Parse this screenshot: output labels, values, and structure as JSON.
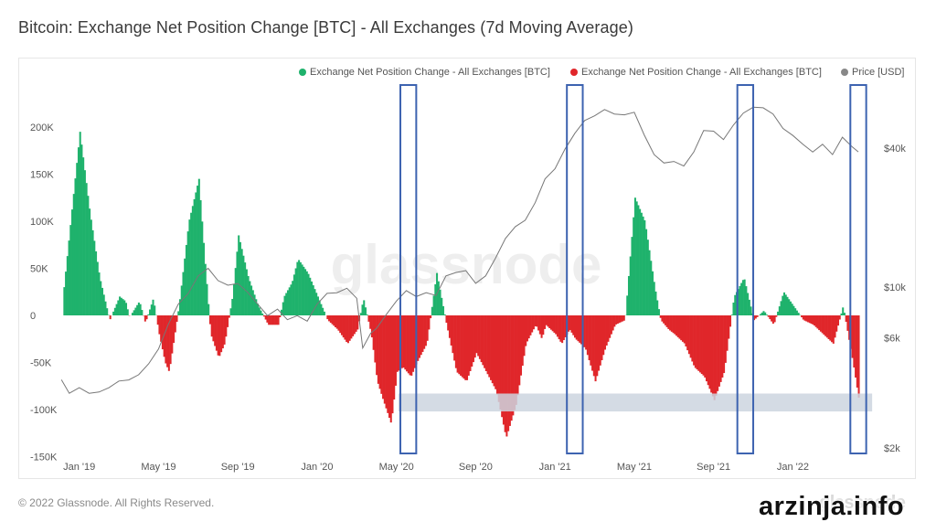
{
  "title": "Bitcoin: Exchange Net Position Change [BTC] - All Exchanges (7d Moving Average)",
  "footer": {
    "copyright": "© 2022 Glassnode. All Rights Reserved.",
    "brand": "glassnode",
    "site_stamp": "arzinja.info"
  },
  "watermark": "glassnode",
  "colors": {
    "positive": "#1fb26c",
    "negative": "#e0262a",
    "price": "#777777",
    "box": "#3d63b0",
    "band": "#cdd5df",
    "axis_text": "#555555"
  },
  "chart_data": {
    "type": "bar",
    "title": "Bitcoin: Exchange Net Position Change [BTC] - All Exchanges (7d Moving Average)",
    "legend_placement": "top-right",
    "legend": [
      {
        "label": "Exchange Net Position Change - All Exchanges [BTC]",
        "color": "#1fb26c"
      },
      {
        "label": "Exchange Net Position Change - All Exchanges [BTC]",
        "color": "#e0262a"
      },
      {
        "label": "Price [USD]",
        "color": "#888888"
      }
    ],
    "x_ticks": [
      "Jan '19",
      "May '19",
      "Sep '19",
      "Jan '20",
      "May '20",
      "Sep '20",
      "Jan '21",
      "May '21",
      "Sep '21",
      "Jan '22"
    ],
    "x_tick_months": [
      0,
      4,
      8,
      12,
      16,
      20,
      24,
      28,
      32,
      36
    ],
    "x_range_months": [
      -1.0,
      40.5
    ],
    "y_left_ticks": [
      "200K",
      "150K",
      "100K",
      "50K",
      "0",
      "-50K",
      "-100K",
      "-150K"
    ],
    "y_left_values": [
      200000,
      150000,
      100000,
      50000,
      0,
      -50000,
      -100000,
      -150000
    ],
    "ylim_left": [
      -150000,
      205000
    ],
    "y_right_ticks": [
      "$40k",
      "$10k",
      "$6k",
      "$2k"
    ],
    "y_right_values": [
      40000,
      10000,
      6000,
      2000
    ],
    "y_right_scale": "log",
    "net_position_series": {
      "name": "Exchange Net Position Change - All Exchanges [BTC]",
      "months": [
        -0.8,
        0,
        0.5,
        1,
        1.5,
        2,
        2.3,
        2.5,
        3,
        3.3,
        3.7,
        4,
        4.3,
        4.5,
        5,
        5.5,
        6,
        6.3,
        6.6,
        7,
        7.3,
        7.7,
        8,
        8.5,
        9,
        9.5,
        10,
        10.3,
        10.7,
        11,
        11.5,
        12,
        12.5,
        13,
        13.5,
        14,
        14.3,
        14.7,
        15,
        15.3,
        15.7,
        16,
        16.3,
        16.7,
        17,
        17.5,
        18,
        18.5,
        19,
        19.5,
        20,
        20.5,
        21,
        21.5,
        22,
        22.5,
        23,
        23.3,
        23.5,
        24,
        24.3,
        24.7,
        25,
        25.5,
        26,
        26.5,
        27,
        27.5,
        28,
        28.5,
        29,
        29.3,
        29.7,
        30,
        30.5,
        31,
        31.5,
        32,
        32.5,
        33,
        33.5,
        34,
        34.5,
        35,
        35.5,
        36,
        36.5,
        37,
        37.5,
        38,
        38.5,
        39,
        39.3
      ],
      "values": [
        30000,
        195000,
        110000,
        40000,
        -5000,
        20000,
        15000,
        -2000,
        15000,
        -8000,
        18000,
        -20000,
        -50000,
        -60000,
        10000,
        100000,
        145000,
        60000,
        -20000,
        -45000,
        -30000,
        20000,
        85000,
        40000,
        10000,
        -10000,
        -10000,
        20000,
        35000,
        60000,
        45000,
        20000,
        -5000,
        -15000,
        -30000,
        -15000,
        18000,
        -20000,
        -70000,
        -90000,
        -115000,
        -60000,
        -55000,
        -65000,
        -50000,
        -30000,
        45000,
        -10000,
        -60000,
        -70000,
        -40000,
        -60000,
        -80000,
        -130000,
        -95000,
        -30000,
        -10000,
        -25000,
        -10000,
        -20000,
        -30000,
        -15000,
        -25000,
        -35000,
        -70000,
        -35000,
        -10000,
        -5000,
        125000,
        100000,
        30000,
        -5000,
        -15000,
        -20000,
        -30000,
        -55000,
        -65000,
        -90000,
        -60000,
        20000,
        40000,
        -5000,
        5000,
        -10000,
        25000,
        10000,
        -5000,
        -10000,
        -20000,
        -30000,
        10000,
        -50000,
        -90000
      ]
    },
    "price_series": {
      "name": "Price [USD]",
      "months": [
        -0.9,
        -0.5,
        0,
        0.5,
        1,
        1.5,
        2,
        2.5,
        3,
        3.5,
        4,
        4.5,
        5,
        5.5,
        6,
        6.5,
        7,
        7.5,
        8,
        8.5,
        9,
        9.5,
        10,
        10.5,
        11,
        11.5,
        12,
        12.5,
        13,
        13.5,
        14,
        14.3,
        14.7,
        15,
        15.5,
        16,
        16.5,
        17,
        17.5,
        18,
        18.5,
        19,
        19.5,
        20,
        20.5,
        21,
        21.5,
        22,
        22.5,
        23,
        23.5,
        24,
        24.5,
        25,
        25.5,
        26,
        26.5,
        27,
        27.5,
        28,
        28.5,
        29,
        29.5,
        30,
        30.5,
        31,
        31.5,
        32,
        32.5,
        33,
        33.5,
        34,
        34.5,
        35,
        35.5,
        36,
        36.5,
        37,
        37.5,
        38,
        38.5,
        39,
        39.3
      ],
      "values": [
        3900,
        3500,
        3600,
        3500,
        3450,
        3700,
        3850,
        4000,
        4100,
        4700,
        5300,
        7000,
        8300,
        9500,
        11000,
        12200,
        10500,
        10300,
        10200,
        9600,
        8300,
        7600,
        7900,
        7300,
        7400,
        7200,
        8300,
        9500,
        9300,
        10000,
        8800,
        5500,
        6200,
        6700,
        7500,
        8800,
        9500,
        9200,
        9300,
        9300,
        11000,
        11700,
        11600,
        10500,
        11000,
        13500,
        16000,
        18500,
        19200,
        23500,
        29000,
        33000,
        39000,
        47000,
        52000,
        56000,
        58000,
        57000,
        55000,
        58000,
        45000,
        38000,
        34000,
        35500,
        33000,
        39000,
        47000,
        48000,
        43000,
        51000,
        56000,
        61000,
        59000,
        57000,
        48000,
        46000,
        41000,
        39000,
        41000,
        38000,
        44000,
        41000,
        38000
      ]
    },
    "highlight_bands": [
      {
        "label": "",
        "y_range": [
          -83000,
          -102000
        ],
        "x_range_months": [
          16.1,
          40.0
        ]
      }
    ],
    "highlight_boxes_x_months": [
      [
        16.2,
        17.0
      ],
      [
        24.6,
        25.4
      ],
      [
        33.2,
        34.0
      ],
      [
        38.9,
        39.7
      ]
    ]
  }
}
